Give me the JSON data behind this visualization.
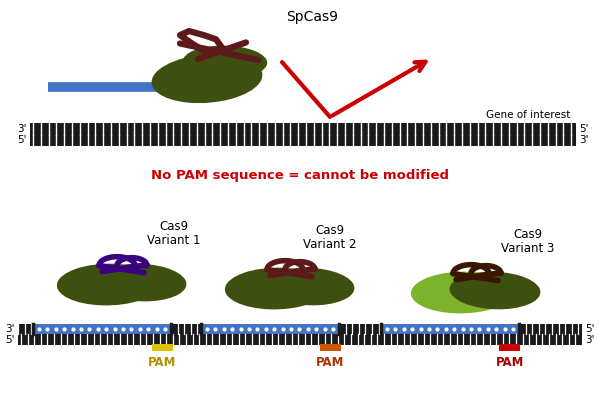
{
  "bg_color": "#ffffff",
  "dna_color": "#1a1a1a",
  "guide_color": "#4472c4",
  "cas9_dark_green": "#3d5010",
  "cas9_light_green": "#7db32a",
  "ribbon_dark_brown": "#5c1a1a",
  "ribbon_purple": "#3a0080",
  "pam_yellow": "#ddc000",
  "pam_yellow_text": "#b09000",
  "pam_orange": "#cc5500",
  "pam_orange_text": "#aa3300",
  "pam_red": "#cc0000",
  "pam_red_text": "#aa0000",
  "no_pam_text": "No PAM sequence = cannot be modified",
  "no_pam_color": "#cc0000",
  "gene_label": "Gene of interest",
  "spcas9_label": "SpCas9",
  "v1_label": "Cas9\nVariant 1",
  "v2_label": "Cas9\nVariant 2",
  "v3_label": "Cas9\nVariant 3"
}
